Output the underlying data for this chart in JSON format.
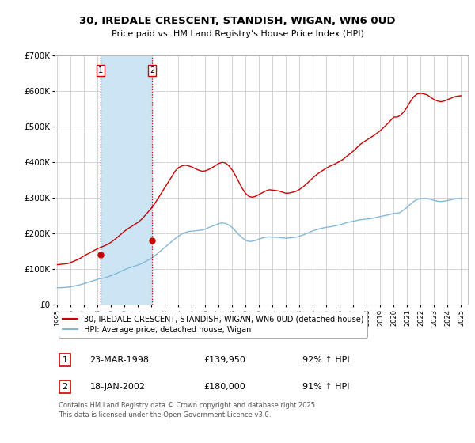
{
  "title": "30, IREDALE CRESCENT, STANDISH, WIGAN, WN6 0UD",
  "subtitle": "Price paid vs. HM Land Registry's House Price Index (HPI)",
  "ylim": [
    0,
    700000
  ],
  "yticks": [
    0,
    100000,
    200000,
    300000,
    400000,
    500000,
    600000,
    700000
  ],
  "ytick_labels": [
    "£0",
    "£100K",
    "£200K",
    "£300K",
    "£400K",
    "£500K",
    "£600K",
    "£700K"
  ],
  "xlim_start": 1994.8,
  "xlim_end": 2025.5,
  "background_color": "#ffffff",
  "plot_bg_color": "#ffffff",
  "grid_color": "#cccccc",
  "transaction_dates": [
    1998.23,
    2002.05
  ],
  "transaction_prices": [
    139950,
    180000
  ],
  "transaction_labels": [
    "1",
    "2"
  ],
  "shade_color": "#cce5f5",
  "vline_color": "#cc0000",
  "marker_color": "#cc0000",
  "red_line_color": "#cc0000",
  "blue_line_color": "#85b8d8",
  "legend_label_red": "30, IREDALE CRESCENT, STANDISH, WIGAN, WN6 0UD (detached house)",
  "legend_label_blue": "HPI: Average price, detached house, Wigan",
  "table_data": [
    {
      "num": "1",
      "date": "23-MAR-1998",
      "price": "£139,950",
      "hpi": "92% ↑ HPI"
    },
    {
      "num": "2",
      "date": "18-JAN-2002",
      "price": "£180,000",
      "hpi": "91% ↑ HPI"
    }
  ],
  "footer": "Contains HM Land Registry data © Crown copyright and database right 2025.\nThis data is licensed under the Open Government Licence v3.0.",
  "hpi_data": {
    "years": [
      1995.0,
      1995.25,
      1995.5,
      1995.75,
      1996.0,
      1996.25,
      1996.5,
      1996.75,
      1997.0,
      1997.25,
      1997.5,
      1997.75,
      1998.0,
      1998.25,
      1998.5,
      1998.75,
      1999.0,
      1999.25,
      1999.5,
      1999.75,
      2000.0,
      2000.25,
      2000.5,
      2000.75,
      2001.0,
      2001.25,
      2001.5,
      2001.75,
      2002.0,
      2002.25,
      2002.5,
      2002.75,
      2003.0,
      2003.25,
      2003.5,
      2003.75,
      2004.0,
      2004.25,
      2004.5,
      2004.75,
      2005.0,
      2005.25,
      2005.5,
      2005.75,
      2006.0,
      2006.25,
      2006.5,
      2006.75,
      2007.0,
      2007.25,
      2007.5,
      2007.75,
      2008.0,
      2008.25,
      2008.5,
      2008.75,
      2009.0,
      2009.25,
      2009.5,
      2009.75,
      2010.0,
      2010.25,
      2010.5,
      2010.75,
      2011.0,
      2011.25,
      2011.5,
      2011.75,
      2012.0,
      2012.25,
      2012.5,
      2012.75,
      2013.0,
      2013.25,
      2013.5,
      2013.75,
      2014.0,
      2014.25,
      2014.5,
      2014.75,
      2015.0,
      2015.25,
      2015.5,
      2015.75,
      2016.0,
      2016.25,
      2016.5,
      2016.75,
      2017.0,
      2017.25,
      2017.5,
      2017.75,
      2018.0,
      2018.25,
      2018.5,
      2018.75,
      2019.0,
      2019.25,
      2019.5,
      2019.75,
      2020.0,
      2020.25,
      2020.5,
      2020.75,
      2021.0,
      2021.25,
      2021.5,
      2021.75,
      2022.0,
      2022.25,
      2022.5,
      2022.75,
      2023.0,
      2023.25,
      2023.5,
      2023.75,
      2024.0,
      2024.25,
      2024.5,
      2024.75,
      2025.0
    ],
    "values": [
      48000,
      48500,
      49000,
      49500,
      51000,
      53000,
      55000,
      57000,
      60000,
      63000,
      66000,
      69000,
      72000,
      74000,
      76000,
      79000,
      82000,
      86000,
      90000,
      95000,
      99000,
      103000,
      106000,
      109000,
      112000,
      116000,
      121000,
      126000,
      131000,
      138000,
      146000,
      154000,
      162000,
      170000,
      178000,
      186000,
      193000,
      199000,
      203000,
      206000,
      207000,
      208000,
      209000,
      210000,
      213000,
      217000,
      221000,
      224000,
      228000,
      230000,
      229000,
      224000,
      217000,
      207000,
      197000,
      188000,
      181000,
      178000,
      179000,
      181000,
      185000,
      188000,
      190000,
      191000,
      190000,
      190000,
      189000,
      188000,
      187000,
      188000,
      189000,
      190000,
      193000,
      196000,
      200000,
      204000,
      208000,
      211000,
      214000,
      216000,
      218000,
      219000,
      221000,
      223000,
      225000,
      228000,
      231000,
      233000,
      235000,
      237000,
      239000,
      240000,
      241000,
      242000,
      244000,
      246000,
      248000,
      250000,
      252000,
      254000,
      257000,
      257000,
      260000,
      267000,
      274000,
      283000,
      291000,
      296000,
      298000,
      299000,
      298000,
      296000,
      293000,
      291000,
      290000,
      291000,
      293000,
      295000,
      297000,
      298000,
      299000
    ]
  },
  "price_paid_data": {
    "years": [
      1995.0,
      1995.25,
      1995.5,
      1995.75,
      1996.0,
      1996.25,
      1996.5,
      1996.75,
      1997.0,
      1997.25,
      1997.5,
      1997.75,
      1998.0,
      1998.25,
      1998.5,
      1998.75,
      1999.0,
      1999.25,
      1999.5,
      1999.75,
      2000.0,
      2000.25,
      2000.5,
      2000.75,
      2001.0,
      2001.25,
      2001.5,
      2001.75,
      2002.0,
      2002.25,
      2002.5,
      2002.75,
      2003.0,
      2003.25,
      2003.5,
      2003.75,
      2004.0,
      2004.25,
      2004.5,
      2004.75,
      2005.0,
      2005.25,
      2005.5,
      2005.75,
      2006.0,
      2006.25,
      2006.5,
      2006.75,
      2007.0,
      2007.25,
      2007.5,
      2007.75,
      2008.0,
      2008.25,
      2008.5,
      2008.75,
      2009.0,
      2009.25,
      2009.5,
      2009.75,
      2010.0,
      2010.25,
      2010.5,
      2010.75,
      2011.0,
      2011.25,
      2011.5,
      2011.75,
      2012.0,
      2012.25,
      2012.5,
      2012.75,
      2013.0,
      2013.25,
      2013.5,
      2013.75,
      2014.0,
      2014.25,
      2014.5,
      2014.75,
      2015.0,
      2015.25,
      2015.5,
      2015.75,
      2016.0,
      2016.25,
      2016.5,
      2016.75,
      2017.0,
      2017.25,
      2017.5,
      2017.75,
      2018.0,
      2018.25,
      2018.5,
      2018.75,
      2019.0,
      2019.25,
      2019.5,
      2019.75,
      2020.0,
      2020.25,
      2020.5,
      2020.75,
      2021.0,
      2021.25,
      2021.5,
      2021.75,
      2022.0,
      2022.25,
      2022.5,
      2022.75,
      2023.0,
      2023.25,
      2023.5,
      2023.75,
      2024.0,
      2024.25,
      2024.5,
      2024.75,
      2025.0
    ],
    "values": [
      113000,
      114000,
      115000,
      116000,
      119000,
      123000,
      127000,
      132000,
      138000,
      143000,
      148000,
      153000,
      158000,
      162000,
      166000,
      170000,
      176000,
      183000,
      191000,
      199000,
      207000,
      214000,
      220000,
      226000,
      232000,
      240000,
      250000,
      261000,
      272000,
      285000,
      300000,
      315000,
      330000,
      345000,
      360000,
      375000,
      385000,
      390000,
      392000,
      390000,
      387000,
      382000,
      378000,
      375000,
      376000,
      380000,
      385000,
      391000,
      397000,
      400000,
      398000,
      390000,
      378000,
      362000,
      344000,
      326000,
      312000,
      304000,
      302000,
      305000,
      310000,
      315000,
      320000,
      323000,
      322000,
      321000,
      319000,
      316000,
      313000,
      314000,
      316000,
      319000,
      324000,
      331000,
      339000,
      348000,
      357000,
      365000,
      372000,
      378000,
      384000,
      389000,
      393000,
      398000,
      403000,
      409000,
      417000,
      424000,
      432000,
      441000,
      450000,
      457000,
      463000,
      469000,
      475000,
      482000,
      489000,
      498000,
      507000,
      517000,
      527000,
      527000,
      532000,
      542000,
      556000,
      572000,
      585000,
      592000,
      594000,
      592000,
      589000,
      582000,
      576000,
      572000,
      570000,
      572000,
      576000,
      580000,
      584000,
      586000,
      587000
    ]
  }
}
